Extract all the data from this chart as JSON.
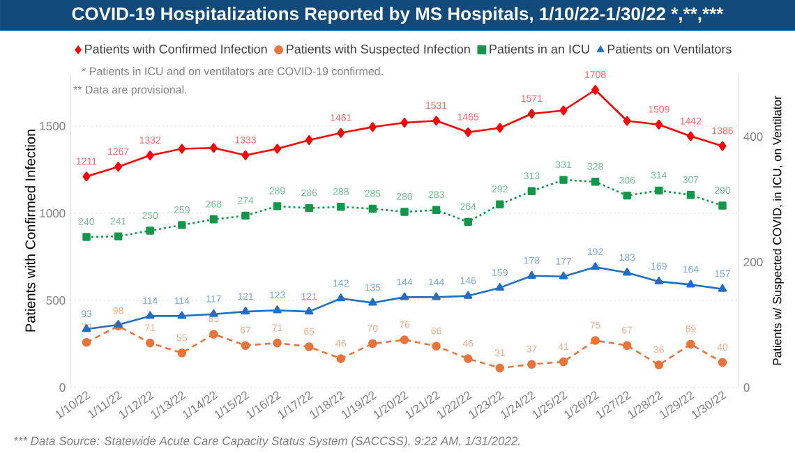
{
  "chart_data": {
    "type": "line",
    "title": "COVID-19 Hospitalizations Reported by MS Hospitals, 1/10/22-1/30/22 *,**,***",
    "categories": [
      "1/10/22",
      "1/11/22",
      "1/12/22",
      "1/13/22",
      "1/14/22",
      "1/15/22",
      "1/16/22",
      "1/17/22",
      "1/18/22",
      "1/19/22",
      "1/20/22",
      "1/21/22",
      "1/22/22",
      "1/23/22",
      "1/24/22",
      "1/25/22",
      "1/26/22",
      "1/27/22",
      "1/28/22",
      "1/29/22",
      "1/30/22"
    ],
    "ylabel": "Patients with Confirmed Infection",
    "y2label": "Patients w/ Suspected COVID, in ICU, on Ventilator",
    "ylim": [
      0,
      1800
    ],
    "yticks": [
      0,
      500,
      1000,
      1500
    ],
    "y2lim": [
      0,
      500
    ],
    "y2ticks": [
      0,
      200,
      400
    ],
    "grid": "y",
    "legend": "top left",
    "annotations": [
      "* Patients in ICU and on ventilators are COVID-19 confirmed.",
      "** Data are provisional.",
      "*** Data Source: Statewide Acute Care Capacity Status System (SACCSS), 9:22 AM, 1/31/2022."
    ],
    "series": [
      {
        "name": "Patients with Confirmed Infection",
        "color": "#ff0000",
        "marker": "diamond",
        "line_style": "solid",
        "values": [
          1211,
          1267,
          1332,
          1370,
          1375,
          1333,
          1370,
          1420,
          1461,
          1495,
          1520,
          1531,
          1465,
          1490,
          1571,
          1590,
          1708,
          1530,
          1509,
          1442,
          1386
        ],
        "value_labels": [
          "1211",
          "1267",
          "1332",
          null,
          null,
          "1333",
          null,
          null,
          "1461",
          null,
          null,
          "1531",
          "1465",
          null,
          "1571",
          null,
          "1708",
          null,
          "1509",
          "1442",
          "1386"
        ]
      },
      {
        "name": "Patients with Suspected Infection",
        "color": "#e8743b",
        "marker": "circle",
        "line_style": "dashed",
        "axis": "y2",
        "values": [
          72,
          98,
          71,
          55,
          85,
          67,
          71,
          65,
          46,
          70,
          76,
          66,
          46,
          31,
          37,
          41,
          75,
          67,
          36,
          69,
          40
        ],
        "value_labels": [
          "72",
          "98",
          "71",
          "55",
          "85",
          "67",
          "71",
          "65",
          "46",
          "70",
          "76",
          "66",
          "46",
          "31",
          "37",
          "41",
          "75",
          "67",
          "36",
          "69",
          "40"
        ]
      },
      {
        "name": "Patients in an ICU",
        "color": "#11964a",
        "marker": "square",
        "line_style": "dotted",
        "axis": "y2",
        "values": [
          240,
          241,
          250,
          259,
          268,
          274,
          289,
          286,
          288,
          285,
          280,
          283,
          264,
          292,
          313,
          331,
          328,
          306,
          314,
          307,
          290
        ],
        "value_labels": [
          "240",
          "241",
          "250",
          "259",
          "268",
          "274",
          "289",
          "286",
          "288",
          "285",
          "280",
          "283",
          "264",
          "292",
          "313",
          "331",
          "328",
          "306",
          "314",
          "307",
          "290"
        ]
      },
      {
        "name": "Patients on Ventilators",
        "color": "#1f6fc5",
        "marker": "triangle",
        "line_style": "solid",
        "axis": "y2",
        "values": [
          93,
          100,
          114,
          114,
          117,
          121,
          123,
          121,
          142,
          135,
          144,
          144,
          146,
          159,
          178,
          177,
          192,
          183,
          169,
          164,
          157
        ],
        "value_labels": [
          "93",
          null,
          "114",
          "114",
          "117",
          "121",
          "123",
          "121",
          "142",
          "135",
          "144",
          "144",
          "146",
          "159",
          "178",
          "177",
          "192",
          "183",
          "169",
          "164",
          "157"
        ]
      }
    ]
  }
}
